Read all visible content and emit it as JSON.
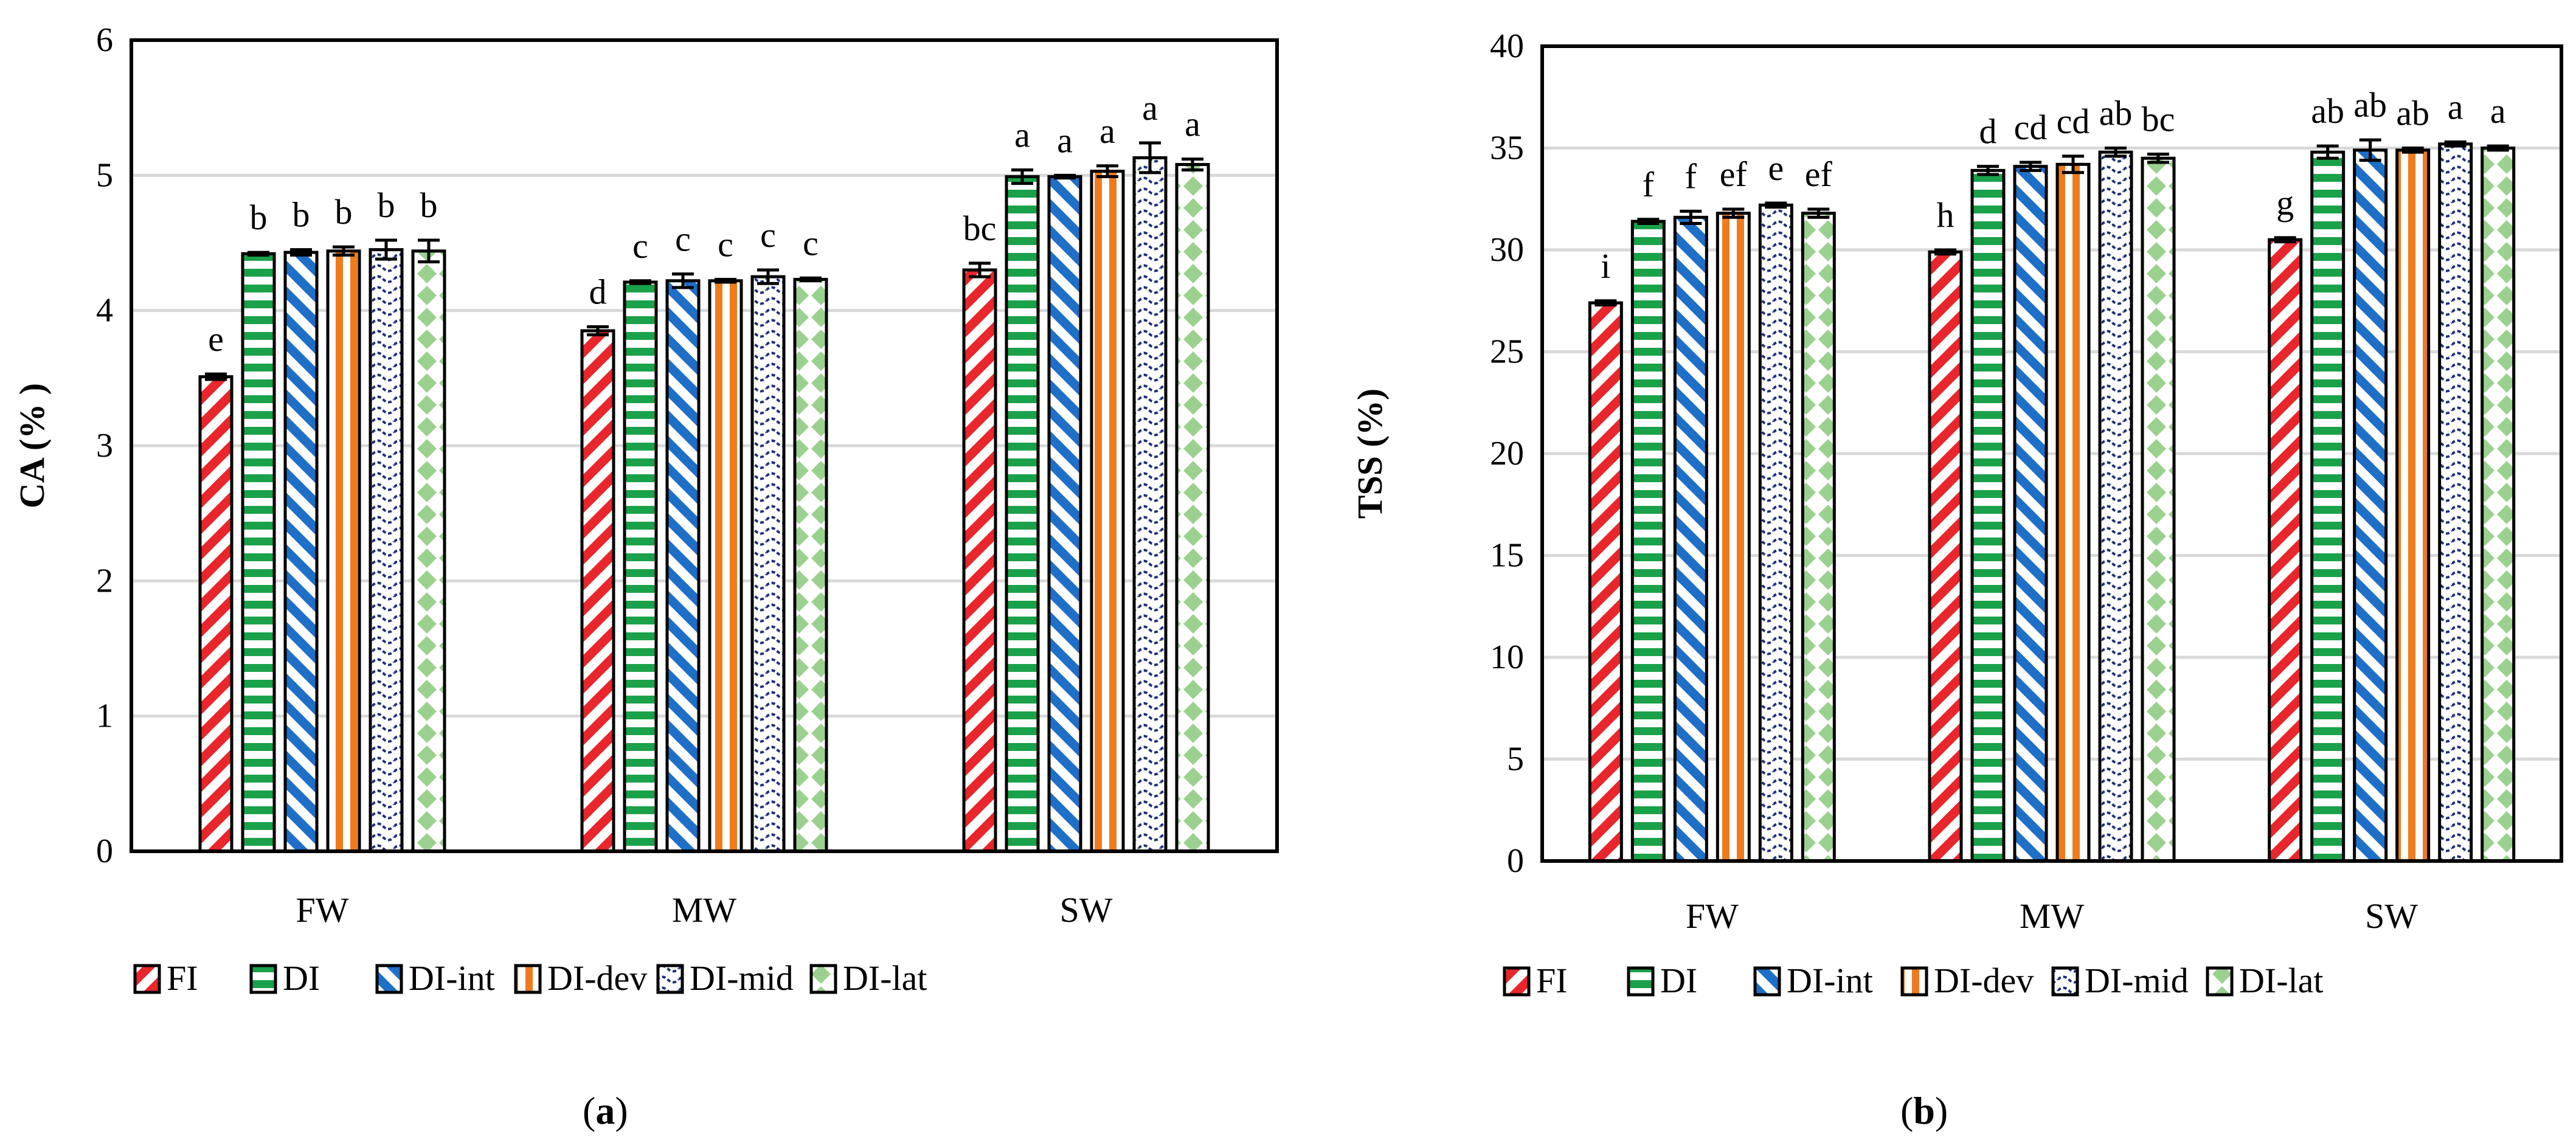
{
  "figure": {
    "panel_labels": [
      "a",
      "b"
    ]
  },
  "legend": {
    "entries": [
      "FI",
      "DI",
      "DI-int",
      "DI-dev",
      "DI-mid",
      "DI-lat"
    ]
  },
  "series_styles": [
    {
      "name": "FI",
      "pattern": "diag-up",
      "color": "#e8262b",
      "border": "#000000"
    },
    {
      "name": "DI",
      "pattern": "horiz",
      "color": "#1aa24a",
      "border": "#000000"
    },
    {
      "name": "DI-int",
      "pattern": "diag-down",
      "color": "#1e6fc7",
      "border": "#000000"
    },
    {
      "name": "DI-dev",
      "pattern": "vert",
      "color": "#f07b1d",
      "border": "#000000"
    },
    {
      "name": "DI-mid",
      "pattern": "wave",
      "color": "#1f2e7a",
      "border": "#000000"
    },
    {
      "name": "DI-lat",
      "pattern": "diamond",
      "color": "#9bd18e",
      "border": "#000000"
    }
  ],
  "chart_data": [
    {
      "type": "bar",
      "panel": "a",
      "title": "",
      "xlabel": "",
      "ylabel": "CA (% )",
      "ylim": [
        0,
        6
      ],
      "ytick_step": 1,
      "ytick_labels": [
        "0",
        "1",
        "2",
        "3",
        "4",
        "5",
        "6"
      ],
      "grid": true,
      "legend_position": "bottom",
      "categories": [
        "FW",
        "MW",
        "SW"
      ],
      "series": [
        {
          "name": "FI",
          "values": [
            3.51,
            3.85,
            4.3
          ],
          "errors": [
            0.02,
            0.03,
            0.05
          ],
          "letters": [
            "e",
            "d",
            "bc"
          ]
        },
        {
          "name": "DI",
          "values": [
            4.42,
            4.21,
            4.99
          ],
          "errors": [
            0.01,
            0.01,
            0.05
          ],
          "letters": [
            "b",
            "c",
            "a"
          ]
        },
        {
          "name": "DI-int",
          "values": [
            4.43,
            4.22,
            4.99
          ],
          "errors": [
            0.02,
            0.05,
            0.01
          ],
          "letters": [
            "b",
            "c",
            "a"
          ]
        },
        {
          "name": "DI-dev",
          "values": [
            4.44,
            4.22,
            5.03
          ],
          "errors": [
            0.03,
            0.01,
            0.04
          ],
          "letters": [
            "b",
            "c",
            "a"
          ]
        },
        {
          "name": "DI-mid",
          "values": [
            4.45,
            4.25,
            5.13
          ],
          "errors": [
            0.07,
            0.05,
            0.11
          ],
          "letters": [
            "b",
            "c",
            "a"
          ]
        },
        {
          "name": "DI-lat",
          "values": [
            4.44,
            4.23,
            5.08
          ],
          "errors": [
            0.08,
            0.01,
            0.04
          ],
          "letters": [
            "b",
            "c",
            "a"
          ]
        }
      ]
    },
    {
      "type": "bar",
      "panel": "b",
      "title": "",
      "xlabel": "",
      "ylabel": "TSS (%)",
      "ylim": [
        0,
        40
      ],
      "ytick_step": 5,
      "ytick_labels": [
        "0",
        "5",
        "10",
        "15",
        "20",
        "25",
        "30",
        "35",
        "40"
      ],
      "grid": true,
      "legend_position": "bottom",
      "categories": [
        "FW",
        "MW",
        "SW"
      ],
      "series": [
        {
          "name": "FI",
          "values": [
            27.4,
            29.9,
            30.5
          ],
          "errors": [
            0.1,
            0.1,
            0.1
          ],
          "letters": [
            "i",
            "h",
            "g"
          ]
        },
        {
          "name": "DI",
          "values": [
            31.4,
            33.9,
            34.8
          ],
          "errors": [
            0.1,
            0.2,
            0.3
          ],
          "letters": [
            "f",
            "d",
            "ab"
          ]
        },
        {
          "name": "DI-int",
          "values": [
            31.6,
            34.1,
            34.9
          ],
          "errors": [
            0.3,
            0.2,
            0.5
          ],
          "letters": [
            "f",
            "cd",
            "ab"
          ]
        },
        {
          "name": "DI-dev",
          "values": [
            31.8,
            34.2,
            34.9
          ],
          "errors": [
            0.2,
            0.4,
            0.1
          ],
          "letters": [
            "ef",
            "cd",
            "ab"
          ]
        },
        {
          "name": "DI-mid",
          "values": [
            32.2,
            34.8,
            35.2
          ],
          "errors": [
            0.1,
            0.2,
            0.1
          ],
          "letters": [
            "e",
            "ab",
            "a"
          ]
        },
        {
          "name": "DI-lat",
          "values": [
            31.8,
            34.5,
            35.0
          ],
          "errors": [
            0.2,
            0.2,
            0.1
          ],
          "letters": [
            "ef",
            "bc",
            "a"
          ]
        }
      ]
    }
  ]
}
